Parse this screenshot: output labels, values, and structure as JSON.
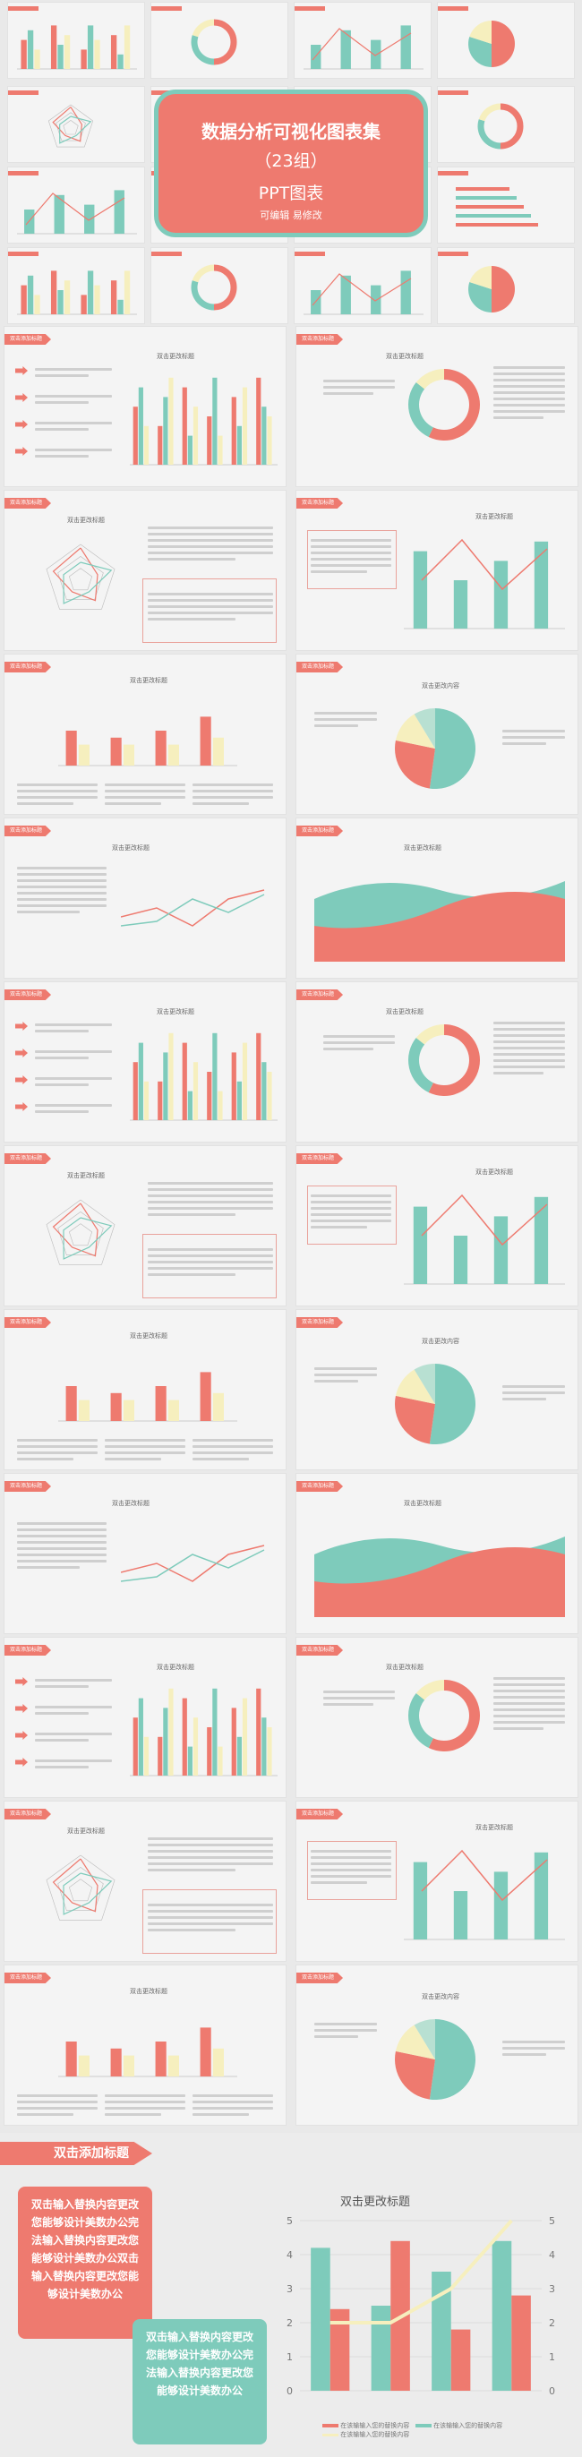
{
  "hero": {
    "title": "数据分析可视化图表集",
    "subtitle": "（23组）",
    "label": "PPT图表",
    "note": "可编辑   易修改"
  },
  "slide_tag": "双击添加标题",
  "chart_title": "双击更改标题",
  "chart_title_alt": "双击更改内容",
  "chart_title_x": "标题",
  "final": {
    "tag": "双击添加标题",
    "chart_title": "双击更改标题",
    "box1": "双击输入替换内容更改您能够设计美数办公完法输入替换内容更改您能够设计美数办公双击输入替换内容更改您能够设计美数办公",
    "box2": "双击输入替换内容更改您能够设计美数办公完法输入替换内容更改您能够设计美数办公",
    "legend1": "在该输输入您的替换内容",
    "legend2": "在该输输入您的替换内容",
    "legend3": "在该输输入您的替换内容",
    "yticks_left": [
      "5",
      "4",
      "3",
      "2",
      "1",
      "0"
    ],
    "yticks_right": [
      "5",
      "4",
      "3",
      "2",
      "1",
      "0"
    ]
  },
  "chart_data": {
    "type": "bar",
    "title": "双击更改标题",
    "categories": [
      "",
      "",
      "",
      ""
    ],
    "series": [
      {
        "values": [
          4.2,
          2.5,
          3.5,
          4.4
        ]
      },
      {
        "values": [
          2.4,
          4.4,
          1.8,
          2.8
        ]
      },
      {
        "values": [
          2.0,
          2.0,
          3.0,
          5.0
        ]
      }
    ],
    "ylim": [
      0,
      5
    ]
  },
  "colors": {
    "coral": "#ee7a6f",
    "teal": "#7ecbbb",
    "cream": "#f6efbe"
  }
}
